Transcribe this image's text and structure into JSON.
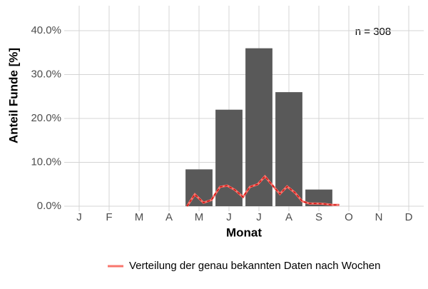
{
  "chart_data": {
    "type": "bar",
    "x_label": "Monat",
    "y_label": "Anteil Funde [%]",
    "annotation": "n = 308",
    "categories": [
      "J",
      "F",
      "M",
      "A",
      "M",
      "J",
      "J",
      "A",
      "S",
      "O",
      "N",
      "D"
    ],
    "values": [
      0,
      0,
      0,
      0,
      8.4,
      22,
      36,
      26,
      3.8,
      0,
      0,
      0
    ],
    "color": "#595959",
    "xlim": [
      0.5,
      12.5
    ],
    "ylim": [
      -1.14,
      45.7
    ],
    "yticks": [
      {
        "value": 0,
        "label": "0.0%"
      },
      {
        "value": 10,
        "label": "10.0%"
      },
      {
        "value": 20,
        "label": "20.0%"
      },
      {
        "value": 30,
        "label": "30.0%"
      },
      {
        "value": 40,
        "label": "40.0%"
      }
    ],
    "grid": true,
    "line": {
      "name": "Verteilung der genau bekannten Daten nach Wochen",
      "color": "#f8766d",
      "dash_color": "#cc1111",
      "x": [
        4.6,
        4.86,
        5.15,
        5.41,
        5.7,
        5.94,
        6.2,
        6.47,
        6.7,
        6.96,
        7.2,
        7.46,
        7.7,
        7.94,
        8.2,
        8.45,
        8.7,
        8.96,
        9.2,
        9.44,
        9.68
      ],
      "values": [
        0,
        2.7,
        0.8,
        1.4,
        4.4,
        4.7,
        3.7,
        2.1,
        4.4,
        5,
        6.8,
        4.7,
        2.8,
        4.5,
        3.1,
        1.1,
        0.6,
        0.6,
        0.5,
        0.3,
        0.3
      ]
    },
    "legend": "bottom"
  }
}
